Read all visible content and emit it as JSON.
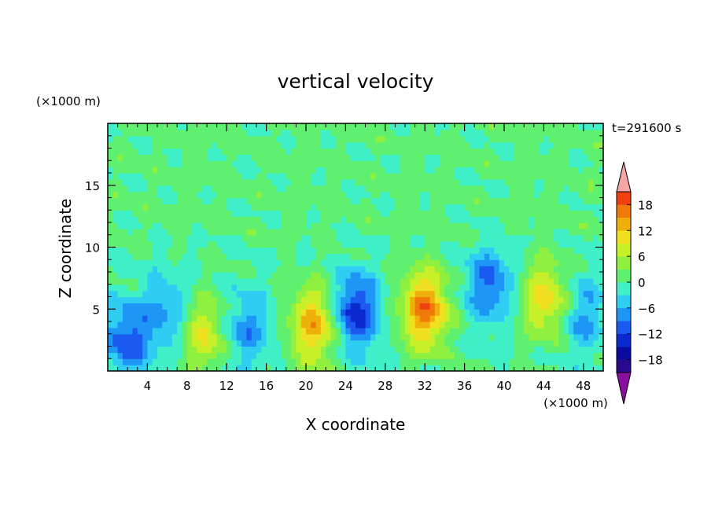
{
  "chart_data": {
    "type": "heatmap",
    "title": "vertical velocity",
    "xlabel": "X coordinate",
    "ylabel": "Z coordinate",
    "x_unit": "(×1000 m)",
    "y_unit": "(×1000 m)",
    "time_label": "t=291600 s",
    "xlim": [
      0,
      50
    ],
    "ylim": [
      0,
      20
    ],
    "x_ticks": [
      4,
      8,
      12,
      16,
      20,
      24,
      28,
      32,
      36,
      40,
      44,
      48
    ],
    "x_tick_labels": [
      "4",
      "8",
      "12",
      "16",
      "20",
      "24",
      "28",
      "32",
      "36",
      "40",
      "44",
      "48"
    ],
    "y_ticks": [
      5,
      10,
      15
    ],
    "y_tick_labels": [
      "5",
      "10",
      "15"
    ],
    "colorbar": {
      "min": -21,
      "max": 21,
      "step": 3,
      "tick_values": [
        18,
        12,
        6,
        0,
        -6,
        -12,
        -18
      ],
      "tick_labels": [
        "18",
        "12",
        "6",
        "0",
        "−6",
        "−12",
        "−18"
      ],
      "over_color": "#f4a6a6",
      "under_color": "#8a0fa0",
      "colors": [
        "#2a0a8c",
        "#0a0aa0",
        "#0a2ad0",
        "#1a5af0",
        "#1e96f6",
        "#30cdf3",
        "#40f0c8",
        "#5ef06e",
        "#8ff040",
        "#c8f028",
        "#f0e020",
        "#f0b00c",
        "#f07a08",
        "#f04010"
      ]
    },
    "features": [
      {
        "x": 2.0,
        "z": 2.5,
        "w": -11
      },
      {
        "x": 5.8,
        "z": 4.8,
        "w": -7
      },
      {
        "x": 9.8,
        "z": 3.0,
        "w": 9
      },
      {
        "x": 14.0,
        "z": 3.5,
        "w": -8
      },
      {
        "x": 20.8,
        "z": 3.7,
        "w": 14
      },
      {
        "x": 25.0,
        "z": 4.8,
        "w": -14
      },
      {
        "x": 32.0,
        "z": 5.0,
        "w": 17
      },
      {
        "x": 38.5,
        "z": 7.0,
        "w": -10
      },
      {
        "x": 44.2,
        "z": 5.8,
        "w": 11
      },
      {
        "x": 48.0,
        "z": 4.5,
        "w": -7
      }
    ]
  }
}
